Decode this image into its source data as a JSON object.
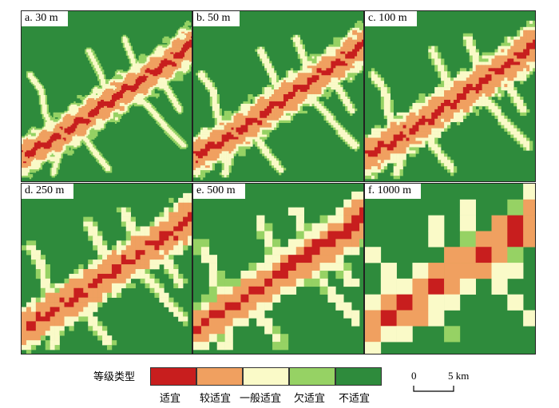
{
  "panels": [
    {
      "label": "a. 30 m"
    },
    {
      "label": "b. 50 m"
    },
    {
      "label": "c. 100 m"
    },
    {
      "label": "d. 250 m"
    },
    {
      "label": "e. 500 m"
    },
    {
      "label": "f. 1000 m"
    }
  ],
  "legend": {
    "title": "等级类型",
    "classes": [
      {
        "name": "适宜",
        "color": "#c81e1e"
      },
      {
        "name": "较适宜",
        "color": "#f0a060"
      },
      {
        "name": "一般适宜",
        "color": "#fafac8"
      },
      {
        "name": "欠适宜",
        "color": "#96d264"
      },
      {
        "name": "不适宜",
        "color": "#2e8b3c"
      }
    ]
  },
  "scale_bar": {
    "start": "0",
    "end": "5 km"
  }
}
